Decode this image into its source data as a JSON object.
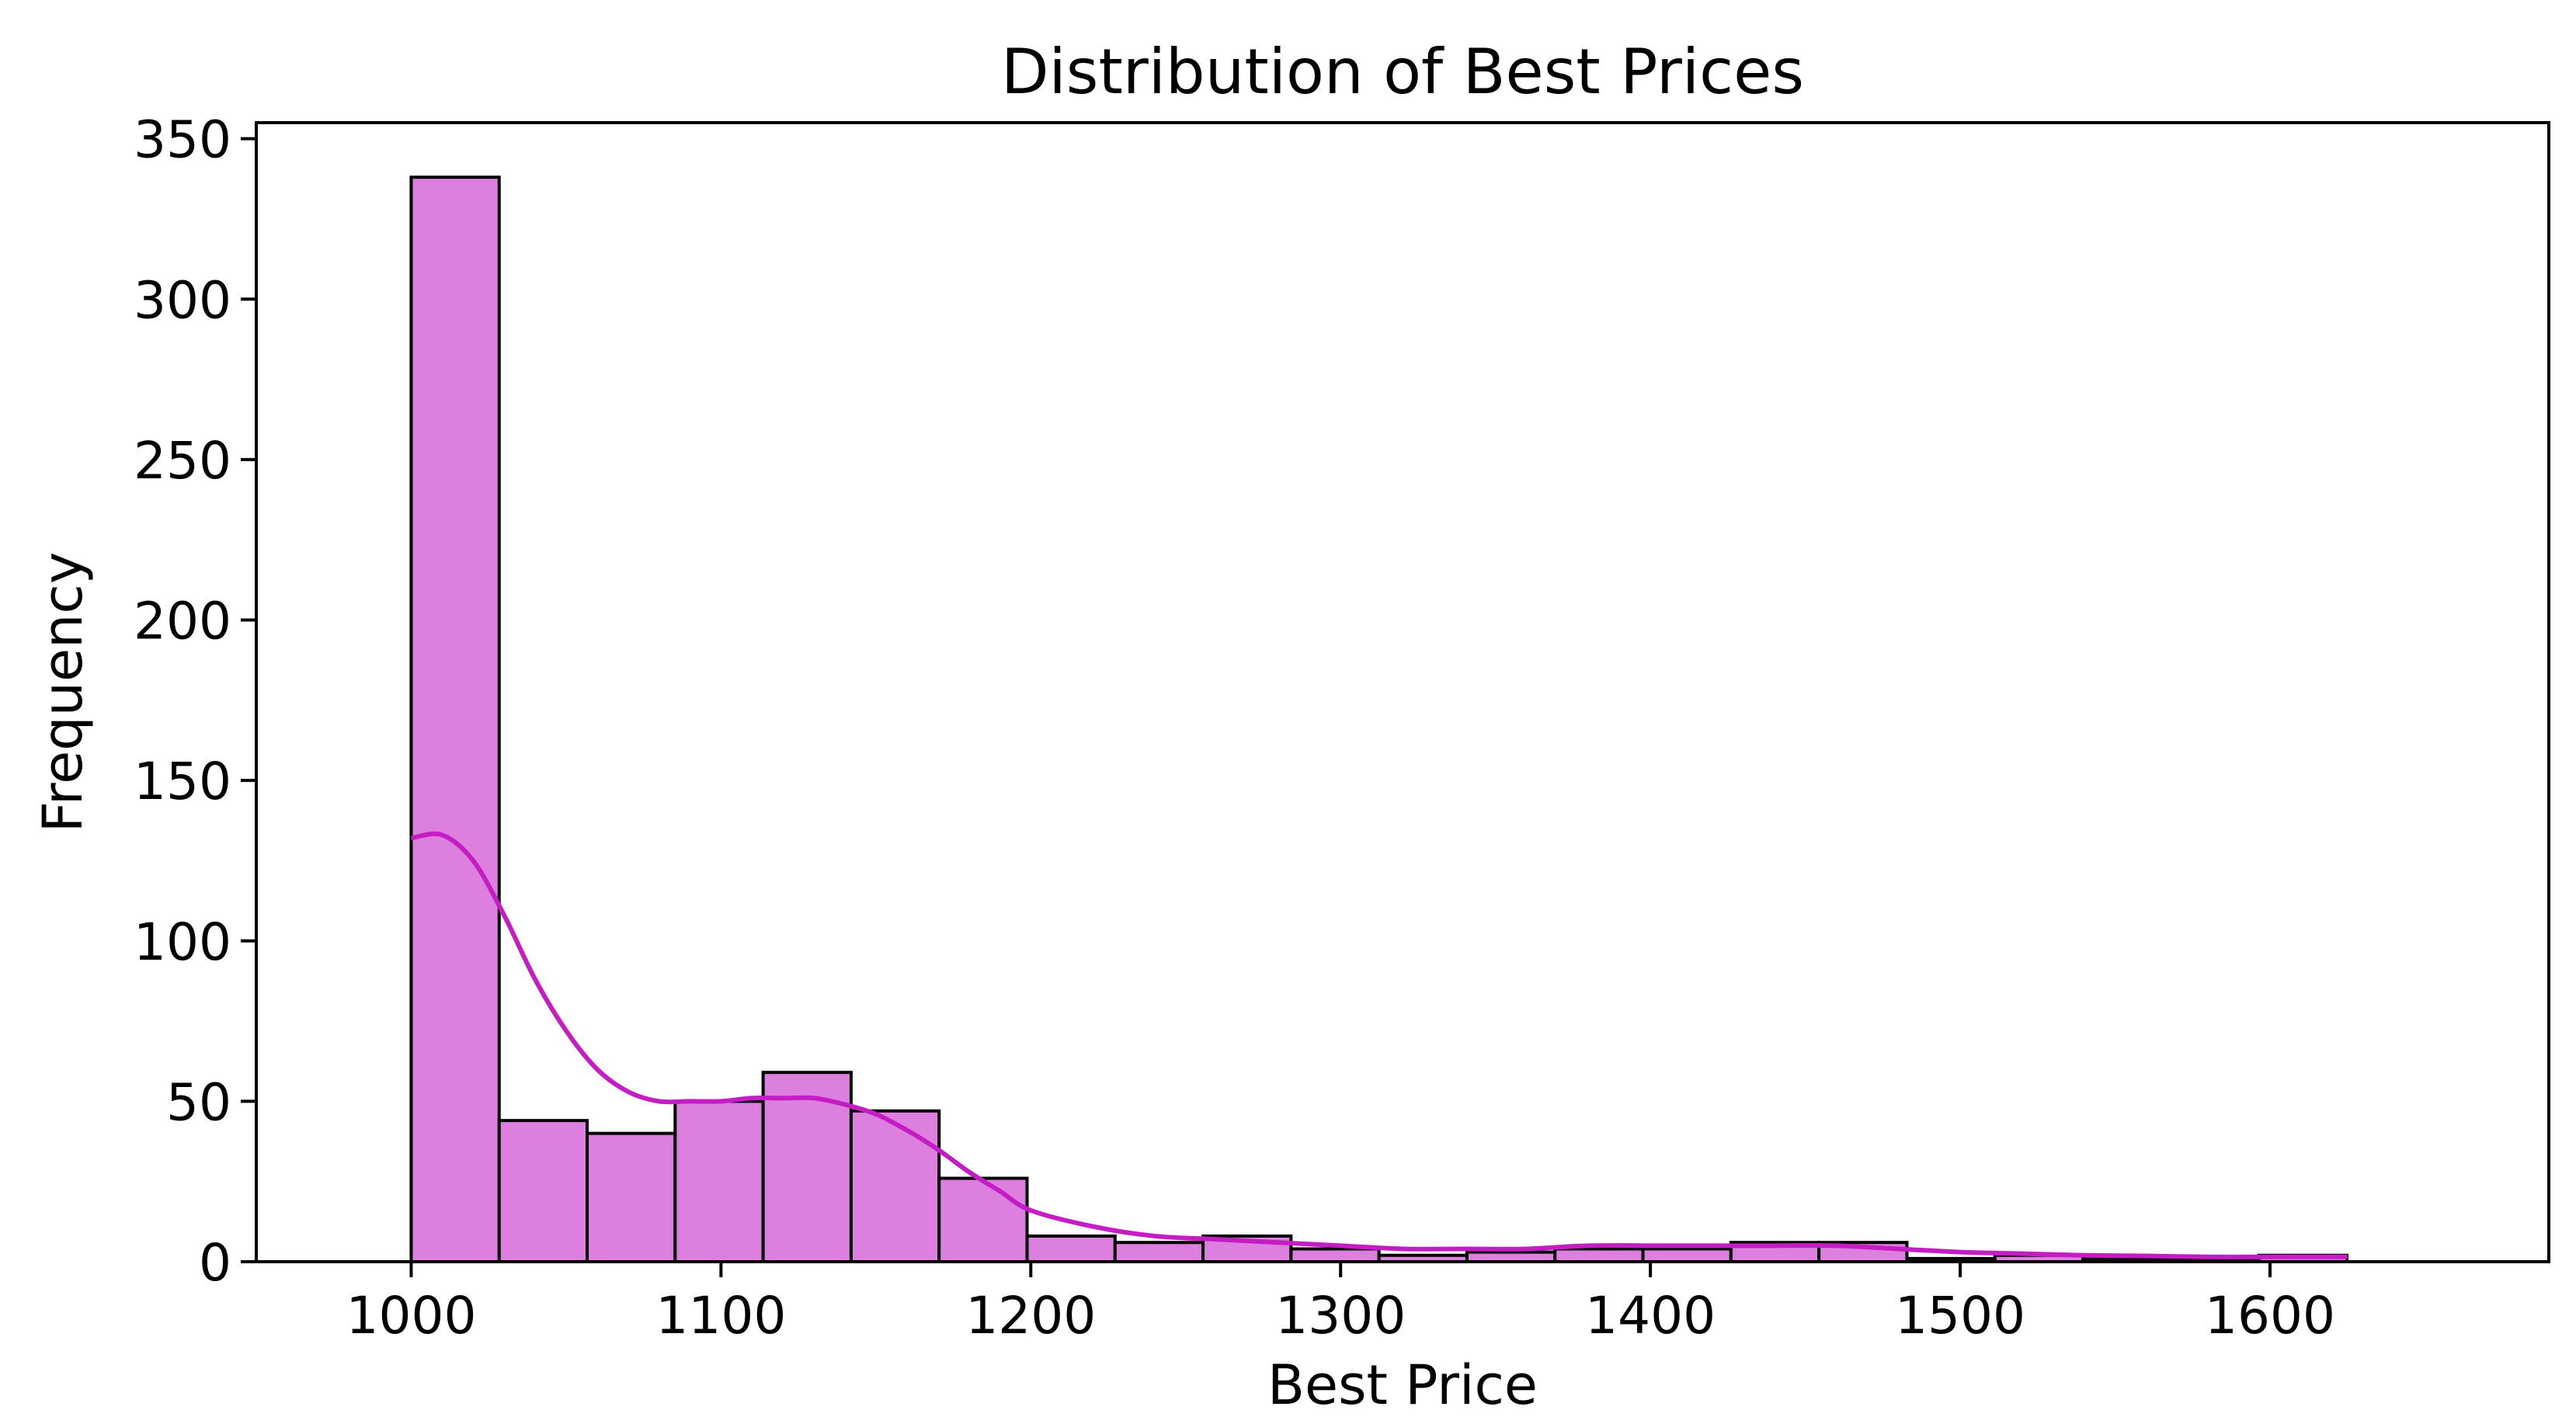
{
  "chart_data": {
    "type": "bar",
    "title": "Distribution of Best Prices",
    "xlabel": "Best Price",
    "ylabel": "Frequency",
    "xlim": [
      950,
      1690
    ],
    "ylim": [
      0,
      355
    ],
    "xticks": [
      1000,
      1100,
      1200,
      1300,
      1400,
      1500,
      1600
    ],
    "yticks": [
      0,
      50,
      100,
      150,
      200,
      250,
      300,
      350
    ],
    "grid": false,
    "bins": [
      {
        "x0": 1000.0,
        "x1": 1028.4,
        "count": 338
      },
      {
        "x0": 1028.4,
        "x1": 1056.8,
        "count": 44
      },
      {
        "x0": 1056.8,
        "x1": 1085.2,
        "count": 40
      },
      {
        "x0": 1085.2,
        "x1": 1113.6,
        "count": 50
      },
      {
        "x0": 1113.6,
        "x1": 1142.0,
        "count": 59
      },
      {
        "x0": 1142.0,
        "x1": 1170.4,
        "count": 47
      },
      {
        "x0": 1170.4,
        "x1": 1198.8,
        "count": 26
      },
      {
        "x0": 1198.8,
        "x1": 1227.2,
        "count": 8
      },
      {
        "x0": 1227.2,
        "x1": 1255.6,
        "count": 6
      },
      {
        "x0": 1255.6,
        "x1": 1284.0,
        "count": 8
      },
      {
        "x0": 1284.0,
        "x1": 1312.4,
        "count": 4
      },
      {
        "x0": 1312.4,
        "x1": 1340.8,
        "count": 2
      },
      {
        "x0": 1340.8,
        "x1": 1369.2,
        "count": 3
      },
      {
        "x0": 1369.2,
        "x1": 1397.6,
        "count": 4
      },
      {
        "x0": 1397.6,
        "x1": 1426.0,
        "count": 4
      },
      {
        "x0": 1426.0,
        "x1": 1454.4,
        "count": 6
      },
      {
        "x0": 1454.4,
        "x1": 1482.8,
        "count": 6
      },
      {
        "x0": 1482.8,
        "x1": 1511.2,
        "count": 1
      },
      {
        "x0": 1511.2,
        "x1": 1539.6,
        "count": 2
      },
      {
        "x0": 1539.6,
        "x1": 1568.0,
        "count": 1
      },
      {
        "x0": 1568.0,
        "x1": 1596.4,
        "count": 1
      },
      {
        "x0": 1596.4,
        "x1": 1624.8,
        "count": 2
      }
    ],
    "kde": {
      "x": [
        1000,
        1010,
        1020,
        1030,
        1040,
        1050,
        1060,
        1070,
        1080,
        1090,
        1100,
        1110,
        1120,
        1130,
        1140,
        1150,
        1160,
        1170,
        1180,
        1190,
        1200,
        1220,
        1240,
        1260,
        1280,
        1300,
        1320,
        1340,
        1360,
        1380,
        1400,
        1420,
        1440,
        1460,
        1480,
        1500,
        1520,
        1540,
        1560,
        1580,
        1600,
        1625
      ],
      "y": [
        132,
        133,
        125,
        108,
        88,
        72,
        60,
        53,
        50,
        50,
        50,
        51,
        51,
        51,
        49,
        46,
        41,
        35,
        28,
        22,
        16,
        11,
        8,
        7,
        6,
        5,
        4,
        4,
        4,
        5,
        5,
        5,
        5,
        5,
        4,
        3,
        2.5,
        2,
        1.8,
        1.5,
        1.5,
        1.5
      ]
    },
    "colors": {
      "bar_fill": "#dd7fdf",
      "bar_edge": "#000000",
      "kde_line": "#c41dc4"
    }
  }
}
